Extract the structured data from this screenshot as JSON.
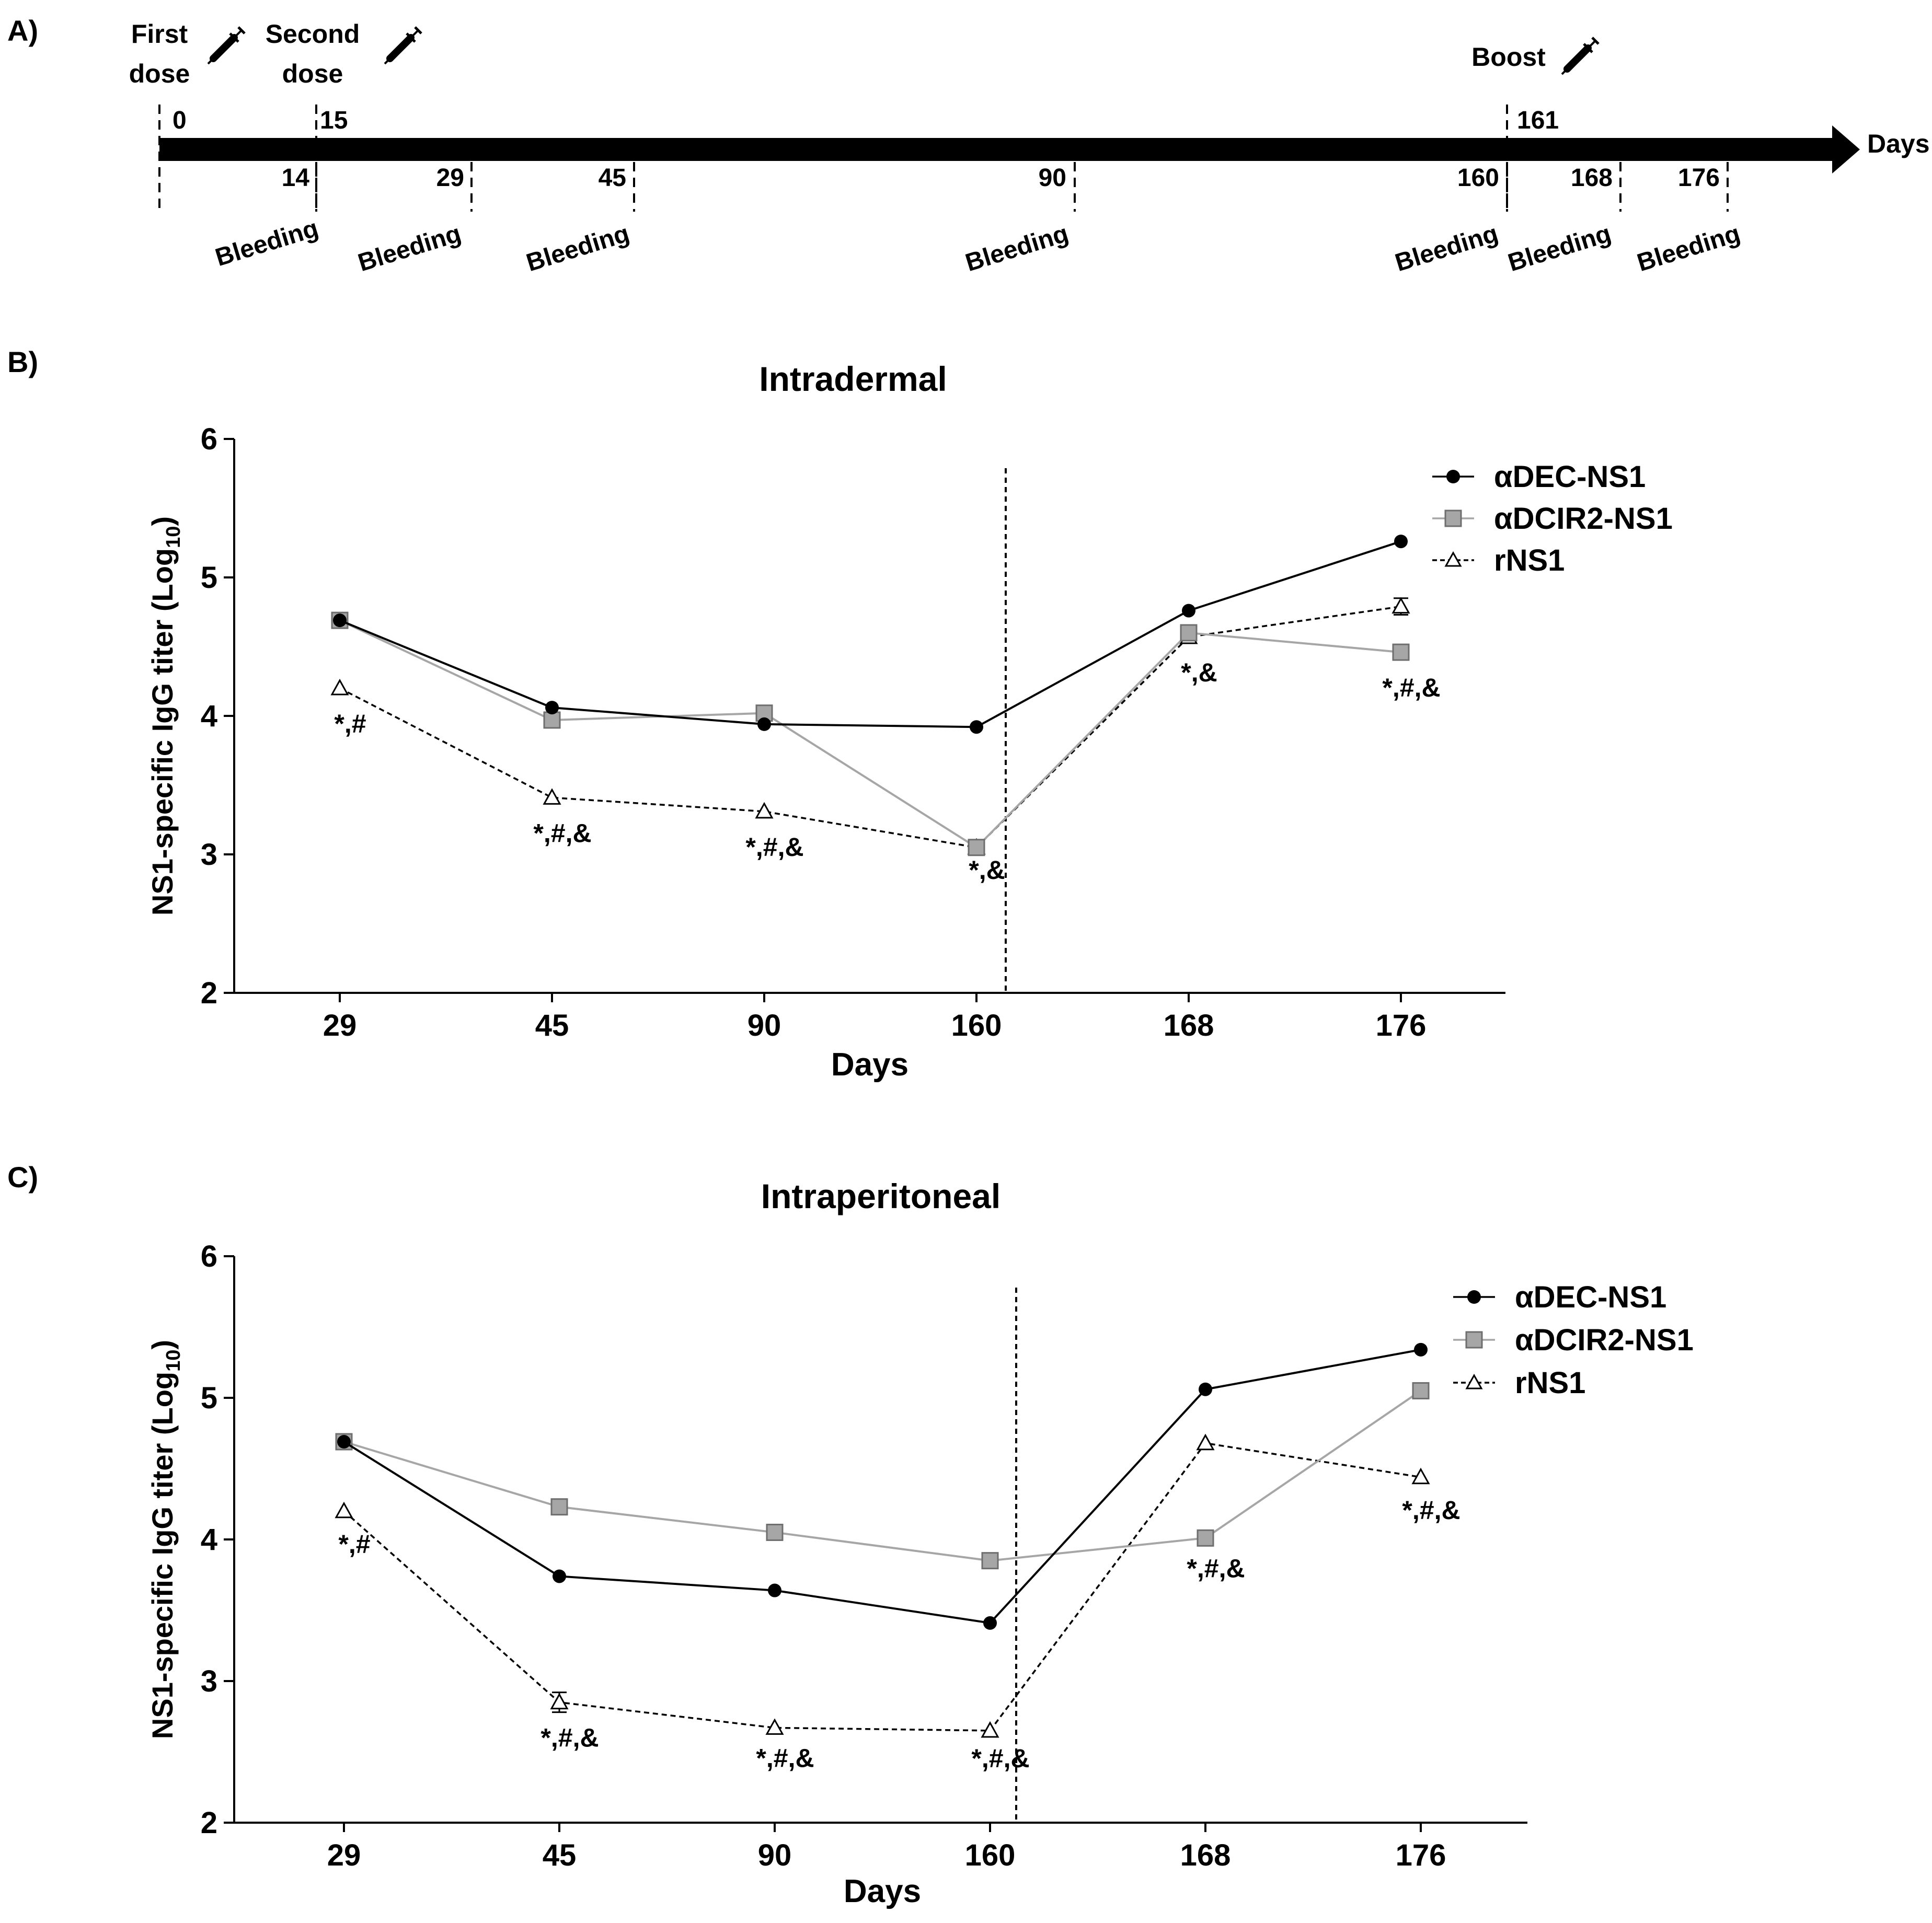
{
  "panel_labels": [
    "A)",
    "B)",
    "C)"
  ],
  "timeline": {
    "axis_label": "Days",
    "events": [
      {
        "label_line1": "First",
        "label_line2": "dose",
        "day": "0",
        "icon": "syringe-icon"
      },
      {
        "label_line1": "Second",
        "label_line2": "dose",
        "day": "15",
        "icon": "syringe-icon"
      },
      {
        "label_line1": "Boost",
        "label_line2": "",
        "day": "161",
        "icon": "syringe-icon"
      }
    ],
    "bleedings": [
      {
        "day": "14",
        "label": "Bleeding"
      },
      {
        "day": "29",
        "label": "Bleeding"
      },
      {
        "day": "45",
        "label": "Bleeding"
      },
      {
        "day": "90",
        "label": "Bleeding"
      },
      {
        "day": "160",
        "label": "Bleeding"
      },
      {
        "day": "168",
        "label": "Bleeding"
      },
      {
        "day": "176",
        "label": "Bleeding"
      }
    ]
  },
  "chart_data": [
    {
      "type": "line",
      "title": "Intradermal",
      "xlabel": "Days",
      "ylabel_main": "NS1-specific IgG titer (Log",
      "ylabel_sub": "10",
      "ylabel_close": ")",
      "categories": [
        "29",
        "45",
        "90",
        "160",
        "168",
        "176"
      ],
      "ylim": [
        2,
        6
      ],
      "yticks": [
        "2",
        "3",
        "4",
        "5",
        "6"
      ],
      "boost_divider_after_category": "160",
      "legend_position": "top-right",
      "series": [
        {
          "name": "αDEC-NS1",
          "marker": "circle",
          "line": "solid",
          "color": "#000000",
          "values": [
            4.69,
            4.06,
            3.94,
            3.92,
            4.76,
            5.26
          ]
        },
        {
          "name": "αDCIR2-NS1",
          "marker": "square",
          "line": "solid",
          "color": "#a6a6a6",
          "values": [
            4.69,
            3.97,
            4.02,
            3.05,
            4.6,
            4.46
          ]
        },
        {
          "name": "rNS1",
          "marker": "triangle",
          "line": "dashed",
          "color": "#000000",
          "values": [
            4.2,
            3.41,
            3.31,
            3.05,
            4.57,
            4.79
          ],
          "errors": [
            0,
            0,
            0,
            0,
            0,
            0.06
          ]
        }
      ],
      "annotations": [
        "*,#",
        "*,#,&",
        "*,#,&",
        "*,&",
        "*,&",
        "*,#,&"
      ]
    },
    {
      "type": "line",
      "title": "Intraperitoneal",
      "xlabel": "Days",
      "ylabel_main": "NS1-specific IgG titer (Log",
      "ylabel_sub": "10",
      "ylabel_close": ")",
      "categories": [
        "29",
        "45",
        "90",
        "160",
        "168",
        "176"
      ],
      "ylim": [
        2,
        6
      ],
      "yticks": [
        "2",
        "3",
        "4",
        "5",
        "6"
      ],
      "boost_divider_after_category": "160",
      "legend_position": "top-right",
      "series": [
        {
          "name": "αDEC-NS1",
          "marker": "circle",
          "line": "solid",
          "color": "#000000",
          "values": [
            4.69,
            3.74,
            3.64,
            3.41,
            5.06,
            5.34
          ]
        },
        {
          "name": "αDCIR2-NS1",
          "marker": "square",
          "line": "solid",
          "color": "#a6a6a6",
          "values": [
            4.69,
            4.23,
            4.05,
            3.85,
            4.01,
            5.05
          ]
        },
        {
          "name": "rNS1",
          "marker": "triangle",
          "line": "dashed",
          "color": "#000000",
          "values": [
            4.2,
            2.85,
            2.67,
            2.65,
            4.68,
            4.44
          ],
          "errors": [
            0,
            0.07,
            0,
            0,
            0,
            0
          ]
        }
      ],
      "annotations": [
        "*,#",
        "*,#,&",
        "*,#,&",
        "*,#,&",
        "*,#,&",
        "*,#,&"
      ]
    }
  ]
}
